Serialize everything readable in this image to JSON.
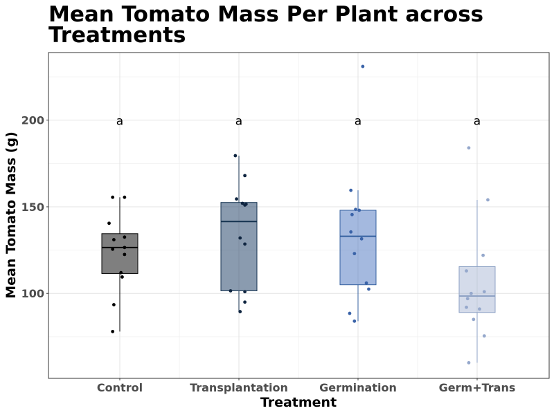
{
  "chart_data": {
    "type": "box",
    "title_lines": [
      "Mean Tomato Mass Per Plant across",
      "Treatments"
    ],
    "xlabel": "Treatment",
    "ylabel": "Mean Tomato Mass (g)",
    "ylim": [
      51,
      239
    ],
    "yticks": [
      100,
      150,
      200
    ],
    "y_minor": [
      75,
      125,
      175,
      225
    ],
    "grid": true,
    "categories": [
      "Control",
      "Transplantation",
      "Germination",
      "Germ+Trans"
    ],
    "significance_y": 200,
    "groups": [
      {
        "name": "Control",
        "label": "a",
        "fill": "#7f7f7f",
        "fill_opacity": 1,
        "stroke": "#000000",
        "point": "#000000",
        "q1": 111.5,
        "median": 126.5,
        "q3": 134.5,
        "whisker_low": 78,
        "whisker_high": 155.5,
        "points": [
          [
            -0.06,
            155.5
          ],
          [
            0.04,
            155.5
          ],
          [
            -0.09,
            140.5
          ],
          [
            -0.05,
            131
          ],
          [
            0.04,
            132.5
          ],
          [
            0.04,
            126.5
          ],
          [
            -0.06,
            125.5
          ],
          [
            0.04,
            122.5
          ],
          [
            0.01,
            112
          ],
          [
            0.02,
            109.5
          ],
          [
            -0.05,
            93.5
          ],
          [
            -0.06,
            78
          ]
        ]
      },
      {
        "name": "Transplantation",
        "label": "a",
        "fill": "#1f3f66",
        "fill_opacity": 0.52,
        "stroke": "#14324f",
        "point": "#0f2540",
        "q1": 101.5,
        "median": 141.5,
        "q3": 152.5,
        "whisker_low": 89.5,
        "whisker_high": 179.5,
        "points": [
          [
            -0.03,
            179.5
          ],
          [
            0.05,
            168
          ],
          [
            -0.02,
            154.5
          ],
          [
            0.03,
            152
          ],
          [
            0.06,
            151.5
          ],
          [
            0.05,
            151
          ],
          [
            0.01,
            132
          ],
          [
            0.05,
            128.5
          ],
          [
            -0.07,
            101.5
          ],
          [
            0.05,
            101
          ],
          [
            0.05,
            95
          ],
          [
            0.01,
            89.5
          ]
        ]
      },
      {
        "name": "Germination",
        "label": "a",
        "fill": "#4a74bf",
        "fill_opacity": 0.5,
        "stroke": "#35609f",
        "point": "#3a63a8",
        "q1": 105,
        "median": 133,
        "q3": 148,
        "whisker_low": 84,
        "whisker_high": 159.5,
        "points": [
          [
            0.04,
            231
          ],
          [
            -0.06,
            159.5
          ],
          [
            -0.02,
            148.5
          ],
          [
            0.01,
            148
          ],
          [
            -0.05,
            145.5
          ],
          [
            -0.06,
            135.5
          ],
          [
            0.03,
            131.5
          ],
          [
            -0.03,
            123
          ],
          [
            0.07,
            106
          ],
          [
            0.09,
            102.5
          ],
          [
            -0.07,
            88.5
          ],
          [
            -0.03,
            84
          ]
        ]
      },
      {
        "name": "Germ+Trans",
        "label": "a",
        "fill": "#9fb0d1",
        "fill_opacity": 0.45,
        "stroke": "#8ea2c4",
        "point": "#95a8cc",
        "q1": 89,
        "median": 98.5,
        "q3": 115.5,
        "whisker_low": 60,
        "whisker_high": 154,
        "points": [
          [
            -0.07,
            184
          ],
          [
            0.09,
            154
          ],
          [
            0.05,
            122
          ],
          [
            -0.09,
            113
          ],
          [
            -0.05,
            100
          ],
          [
            0.06,
            101
          ],
          [
            0.02,
            91
          ],
          [
            -0.08,
            97
          ],
          [
            -0.09,
            92
          ],
          [
            -0.03,
            85
          ],
          [
            0.06,
            75.5
          ],
          [
            -0.07,
            60
          ]
        ]
      }
    ]
  }
}
